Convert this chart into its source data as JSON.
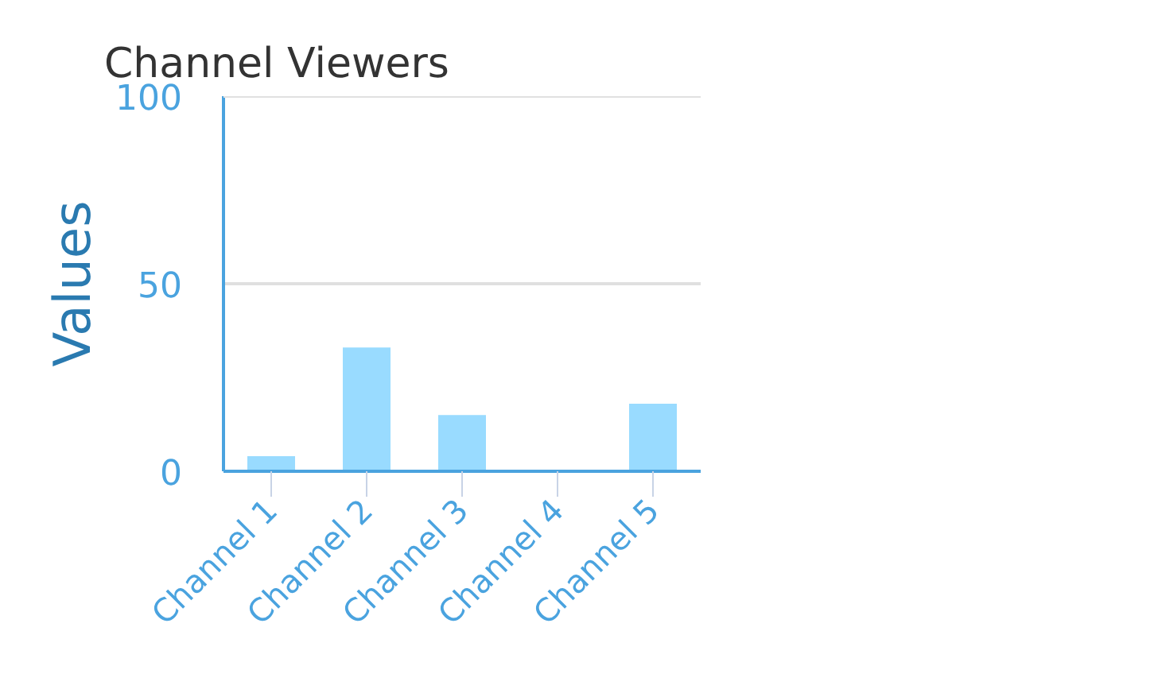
{
  "chart_data": {
    "type": "bar",
    "title": "Channel Viewers",
    "ylabel": "Values",
    "categories": [
      "Channel 1",
      "Channel 2",
      "Channel 3",
      "Channel 4",
      "Channel 5"
    ],
    "values": [
      4,
      33,
      15,
      0,
      18
    ],
    "color": "#99dbff",
    "ylim": [
      0,
      100
    ],
    "yticks": [
      0,
      50,
      100
    ],
    "grid": "y"
  }
}
